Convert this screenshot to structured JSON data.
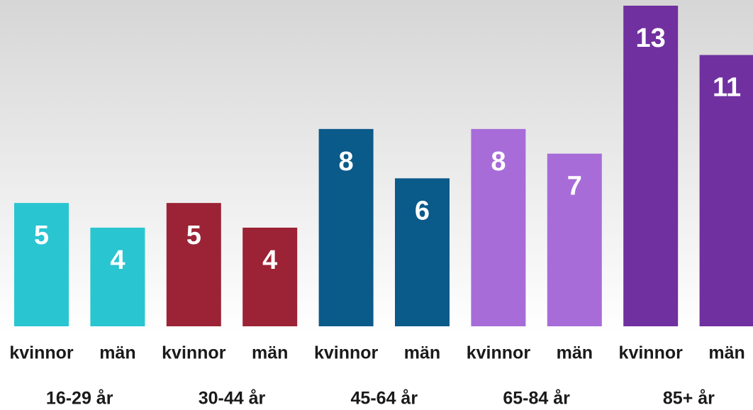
{
  "chart_data": {
    "type": "bar",
    "groups": [
      {
        "name": "16-29 år",
        "color": "#29c5d1",
        "categories": [
          "kvinnor",
          "män"
        ],
        "values": [
          5,
          4
        ]
      },
      {
        "name": "30-44 år",
        "color": "#9b2335",
        "categories": [
          "kvinnor",
          "män"
        ],
        "values": [
          5,
          4
        ]
      },
      {
        "name": "45-64 år",
        "color": "#0a5a8a",
        "categories": [
          "kvinnor",
          "män"
        ],
        "values": [
          8,
          6
        ]
      },
      {
        "name": "65-84 år",
        "color": "#a86cd9",
        "categories": [
          "kvinnor",
          "män"
        ],
        "values": [
          8,
          7
        ]
      },
      {
        "name": "85+ år",
        "color": "#7030a0",
        "categories": [
          "kvinnor",
          "män"
        ],
        "values": [
          13,
          11
        ]
      }
    ]
  }
}
